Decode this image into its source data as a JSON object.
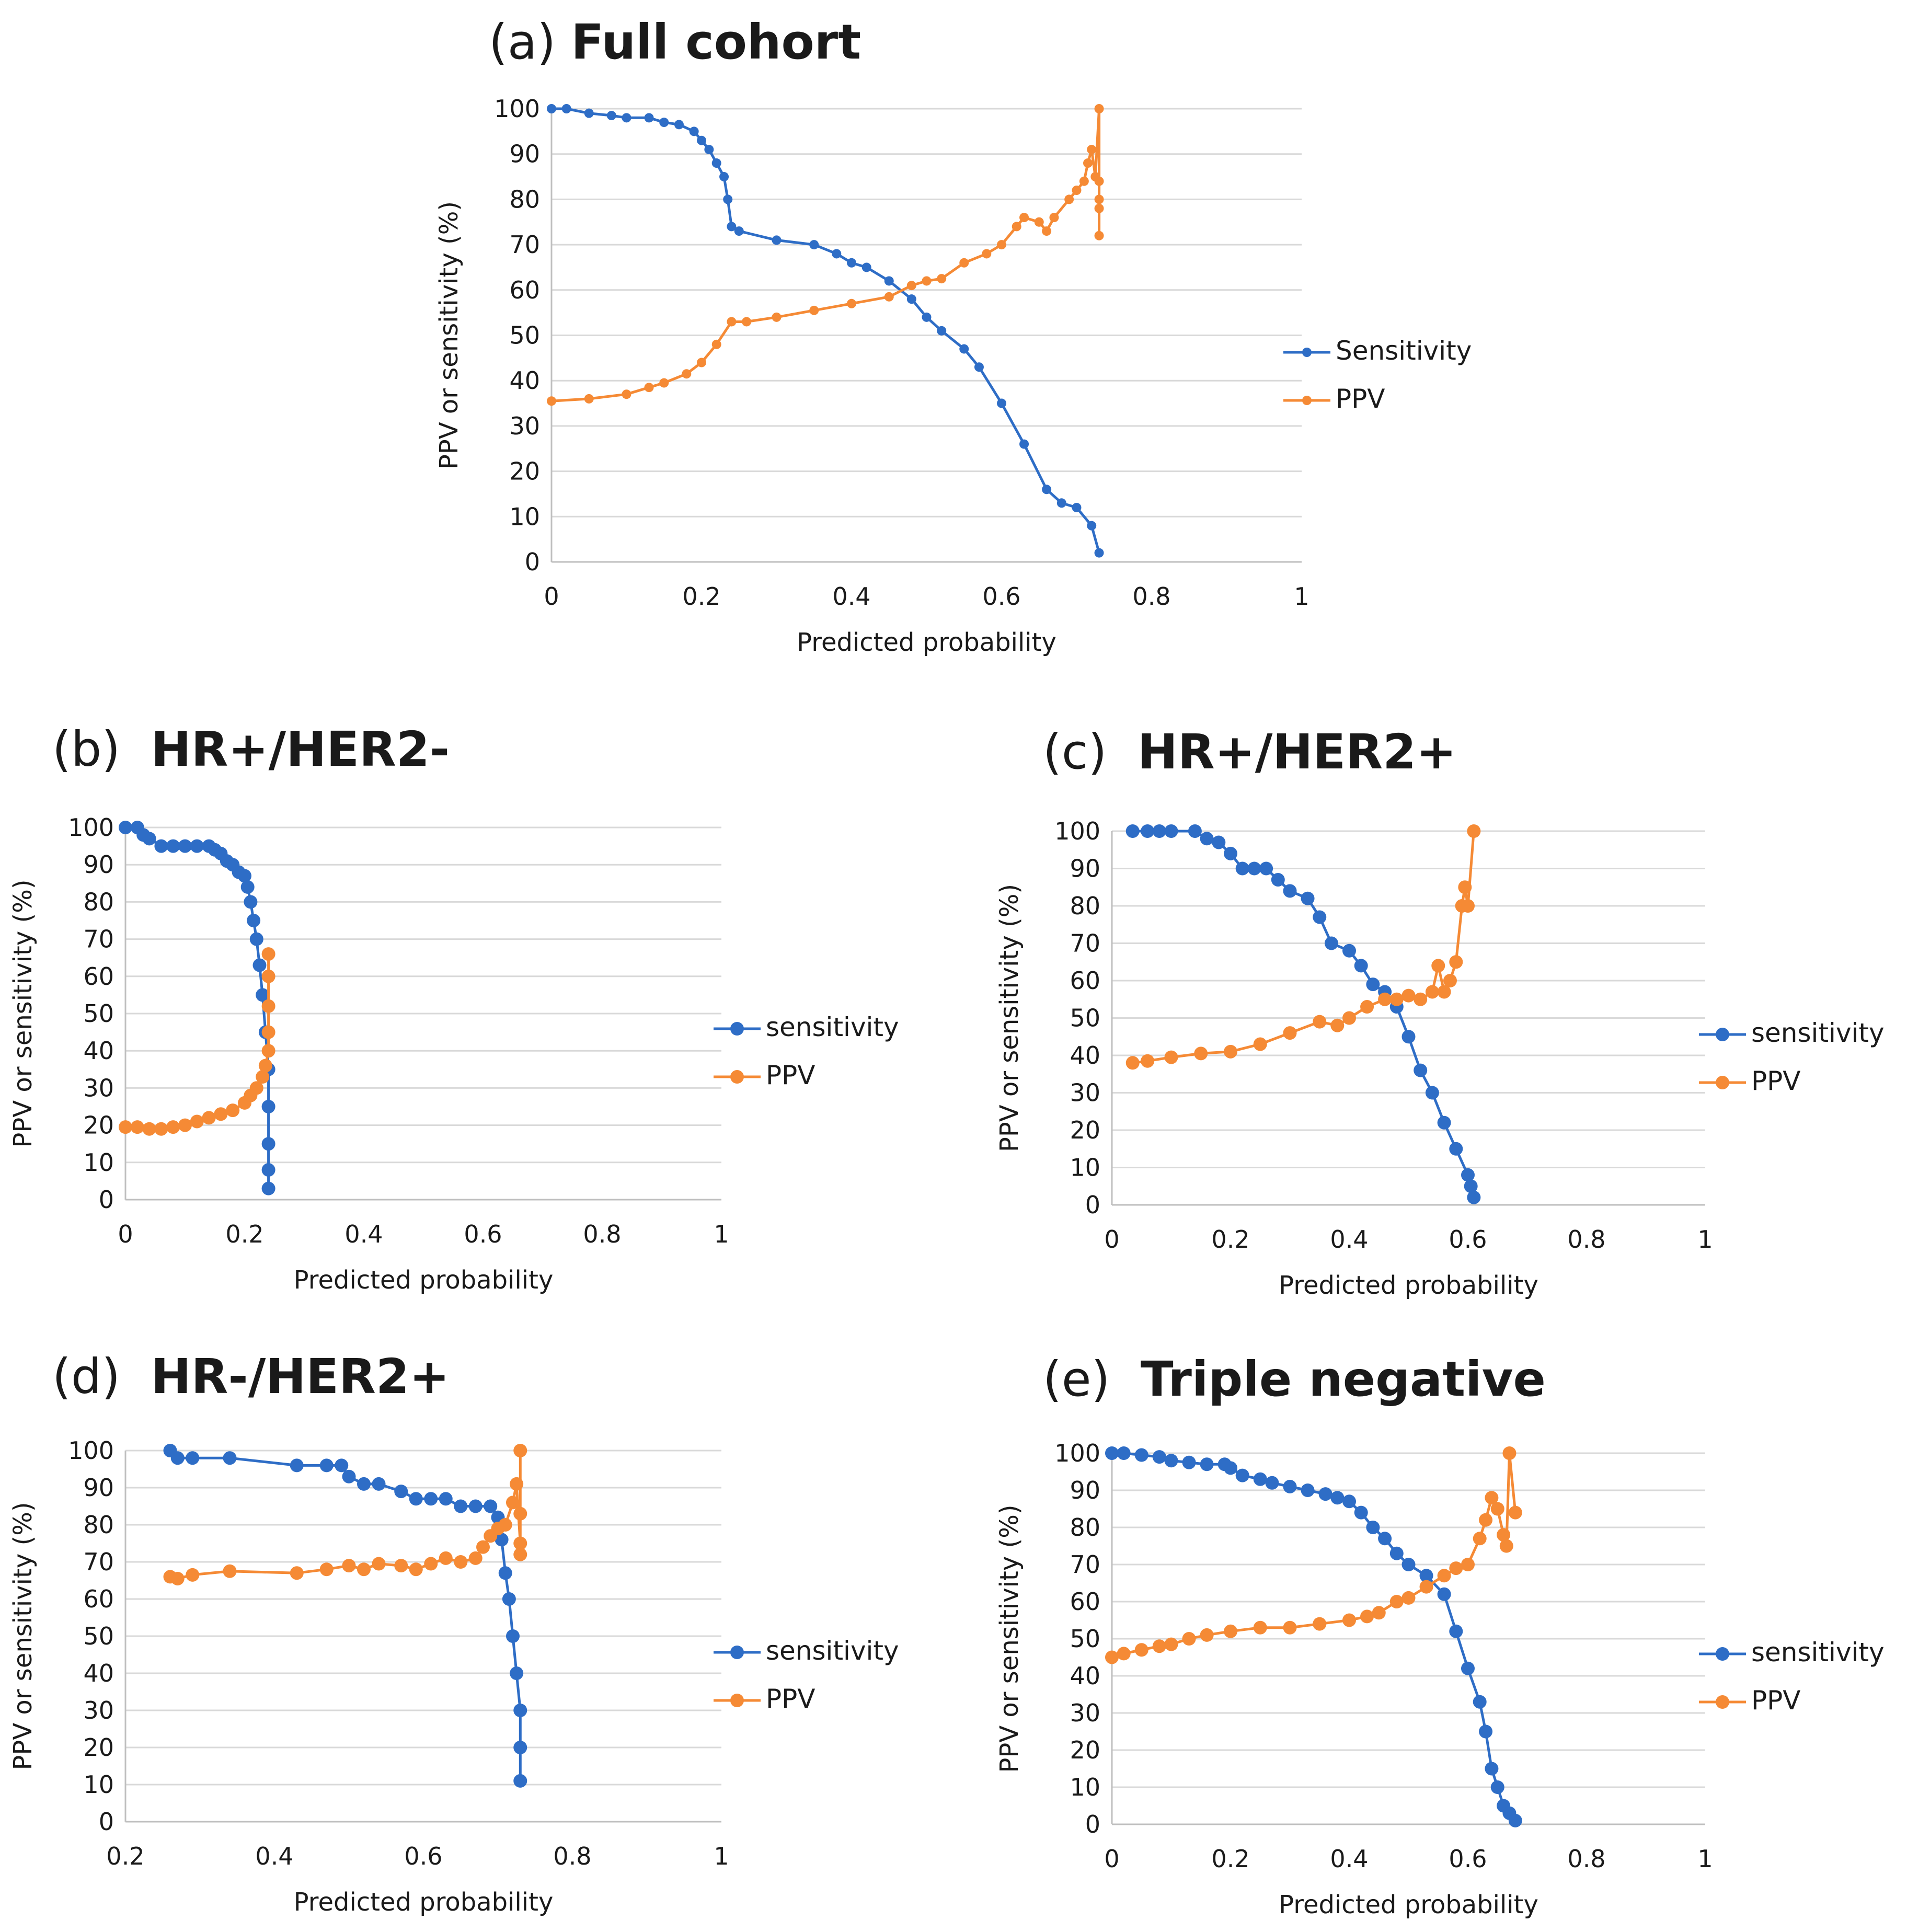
{
  "colors": {
    "sensitivity": "#2e6dc6",
    "ppv": "#f58a35"
  },
  "chart_data": [
    {
      "id": "a",
      "type": "line",
      "label_prefix": "(a) ",
      "title": "Full cohort",
      "xlabel": "Predicted probability",
      "ylabel": "PPV or sensitivity (%)",
      "xlim": [
        0,
        1
      ],
      "ylim": [
        0,
        100
      ],
      "xticks": [
        "0",
        "0.2",
        "0.4",
        "0.6",
        "0.8",
        "1"
      ],
      "yticks": [
        "0",
        "10",
        "20",
        "30",
        "40",
        "50",
        "60",
        "70",
        "80",
        "90",
        "100"
      ],
      "legend": [
        "Sensitivity",
        "PPV"
      ],
      "series": [
        {
          "name": "Sensitivity",
          "x": [
            0,
            0.02,
            0.05,
            0.08,
            0.1,
            0.13,
            0.15,
            0.17,
            0.19,
            0.2,
            0.21,
            0.22,
            0.23,
            0.235,
            0.24,
            0.25,
            0.3,
            0.35,
            0.38,
            0.4,
            0.42,
            0.45,
            0.48,
            0.5,
            0.52,
            0.55,
            0.57,
            0.6,
            0.63,
            0.66,
            0.68,
            0.7,
            0.72,
            0.73
          ],
          "y": [
            100,
            100,
            99,
            98.5,
            98,
            98,
            97,
            96.5,
            95,
            93,
            91,
            88,
            85,
            80,
            74,
            73,
            71,
            70,
            68,
            66,
            65,
            62,
            58,
            54,
            51,
            47,
            43,
            35,
            26,
            16,
            13,
            12,
            8,
            2
          ]
        },
        {
          "name": "PPV",
          "x": [
            0,
            0.05,
            0.1,
            0.13,
            0.15,
            0.18,
            0.2,
            0.22,
            0.24,
            0.26,
            0.3,
            0.35,
            0.4,
            0.45,
            0.48,
            0.5,
            0.52,
            0.55,
            0.58,
            0.6,
            0.62,
            0.63,
            0.65,
            0.66,
            0.67,
            0.69,
            0.7,
            0.71,
            0.715,
            0.72,
            0.725,
            0.73,
            0.73,
            0.73,
            0.73,
            0.73
          ],
          "y": [
            35.5,
            36,
            37,
            38.5,
            39.5,
            41.5,
            44,
            48,
            53,
            53,
            54,
            55.5,
            57,
            58.5,
            61,
            62,
            62.5,
            66,
            68,
            70,
            74,
            76,
            75,
            73,
            76,
            80,
            82,
            84,
            88,
            91,
            85,
            100,
            72,
            84,
            78,
            80
          ]
        }
      ]
    },
    {
      "id": "b",
      "type": "line",
      "label_prefix": "(b)  ",
      "title": "HR+/HER2-",
      "xlabel": "Predicted probability",
      "ylabel": "PPV or sensitivity (%)",
      "xlim": [
        0,
        1
      ],
      "ylim": [
        0,
        100
      ],
      "xticks": [
        "0",
        "0.2",
        "0.4",
        "0.6",
        "0.8",
        "1"
      ],
      "yticks": [
        "0",
        "10",
        "20",
        "30",
        "40",
        "50",
        "60",
        "70",
        "80",
        "90",
        "100"
      ],
      "legend": [
        "sensitivity",
        "PPV"
      ],
      "series": [
        {
          "name": "sensitivity",
          "x": [
            0,
            0.02,
            0.03,
            0.04,
            0.06,
            0.08,
            0.1,
            0.12,
            0.14,
            0.15,
            0.16,
            0.17,
            0.18,
            0.19,
            0.2,
            0.205,
            0.21,
            0.215,
            0.22,
            0.225,
            0.23,
            0.235,
            0.24,
            0.24,
            0.24,
            0.24,
            0.24
          ],
          "y": [
            100,
            100,
            98,
            97,
            95,
            95,
            95,
            95,
            95,
            94,
            93,
            91,
            90,
            88,
            87,
            84,
            80,
            75,
            70,
            63,
            55,
            45,
            35,
            25,
            15,
            8,
            3
          ]
        },
        {
          "name": "PPV",
          "x": [
            0,
            0.02,
            0.04,
            0.06,
            0.08,
            0.1,
            0.12,
            0.14,
            0.16,
            0.18,
            0.2,
            0.21,
            0.22,
            0.23,
            0.235,
            0.24,
            0.24,
            0.24,
            0.24,
            0.24
          ],
          "y": [
            19.5,
            19.5,
            19,
            19,
            19.5,
            20,
            21,
            22,
            23,
            24,
            26,
            28,
            30,
            33,
            36,
            40,
            45,
            52,
            60,
            66
          ]
        }
      ]
    },
    {
      "id": "c",
      "type": "line",
      "label_prefix": "(c)  ",
      "title": "HR+/HER2+",
      "xlabel": "Predicted probability",
      "ylabel": "PPV or sensitivity (%)",
      "xlim": [
        0,
        1
      ],
      "ylim": [
        0,
        100
      ],
      "xticks": [
        "0",
        "0.2",
        "0.4",
        "0.6",
        "0.8",
        "1"
      ],
      "yticks": [
        "0",
        "10",
        "20",
        "30",
        "40",
        "50",
        "60",
        "70",
        "80",
        "90",
        "100"
      ],
      "legend": [
        "sensitivity",
        "PPV"
      ],
      "series": [
        {
          "name": "sensitivity",
          "x": [
            0.035,
            0.06,
            0.08,
            0.1,
            0.14,
            0.16,
            0.18,
            0.2,
            0.22,
            0.24,
            0.26,
            0.28,
            0.3,
            0.33,
            0.35,
            0.37,
            0.4,
            0.42,
            0.44,
            0.46,
            0.48,
            0.5,
            0.52,
            0.54,
            0.56,
            0.58,
            0.6,
            0.605,
            0.61
          ],
          "y": [
            100,
            100,
            100,
            100,
            100,
            98,
            97,
            94,
            90,
            90,
            90,
            87,
            84,
            82,
            77,
            70,
            68,
            64,
            59,
            57,
            53,
            45,
            36,
            30,
            22,
            15,
            8,
            5,
            2
          ]
        },
        {
          "name": "PPV",
          "x": [
            0.035,
            0.06,
            0.1,
            0.15,
            0.2,
            0.25,
            0.3,
            0.35,
            0.38,
            0.4,
            0.43,
            0.46,
            0.48,
            0.5,
            0.52,
            0.54,
            0.55,
            0.56,
            0.57,
            0.58,
            0.59,
            0.595,
            0.6,
            0.61
          ],
          "y": [
            38,
            38.5,
            39.5,
            40.5,
            41,
            43,
            46,
            49,
            48,
            50,
            53,
            55,
            55,
            56,
            55,
            57,
            64,
            57,
            60,
            65,
            80,
            85,
            80,
            100
          ]
        }
      ]
    },
    {
      "id": "d",
      "type": "line",
      "label_prefix": "(d)  ",
      "title": "HR-/HER2+",
      "xlabel": "Predicted probability",
      "ylabel": "PPV or sensitivity (%)",
      "xlim": [
        0.2,
        1
      ],
      "ylim": [
        0,
        100
      ],
      "xticks": [
        "0.2",
        "0.4",
        "0.6",
        "0.8",
        "1"
      ],
      "yticks": [
        "0",
        "10",
        "20",
        "30",
        "40",
        "50",
        "60",
        "70",
        "80",
        "90",
        "100"
      ],
      "legend": [
        "sensitivity",
        "PPV"
      ],
      "series": [
        {
          "name": "sensitivity",
          "x": [
            0.26,
            0.27,
            0.29,
            0.34,
            0.43,
            0.47,
            0.49,
            0.5,
            0.52,
            0.54,
            0.57,
            0.59,
            0.61,
            0.63,
            0.65,
            0.67,
            0.69,
            0.7,
            0.705,
            0.71,
            0.715,
            0.72,
            0.725,
            0.73,
            0.73,
            0.73
          ],
          "y": [
            100,
            98,
            98,
            98,
            96,
            96,
            96,
            93,
            91,
            91,
            89,
            87,
            87,
            87,
            85,
            85,
            85,
            82,
            76,
            67,
            60,
            50,
            40,
            30,
            20,
            11
          ]
        },
        {
          "name": "PPV",
          "x": [
            0.26,
            0.27,
            0.29,
            0.34,
            0.43,
            0.47,
            0.5,
            0.52,
            0.54,
            0.57,
            0.59,
            0.61,
            0.63,
            0.65,
            0.67,
            0.68,
            0.69,
            0.7,
            0.71,
            0.72,
            0.725,
            0.73,
            0.73,
            0.73,
            0.73
          ],
          "y": [
            66,
            65.5,
            66.5,
            67.5,
            67,
            68,
            69,
            68,
            69.5,
            69,
            68,
            69.5,
            71,
            70,
            71,
            74,
            77,
            79,
            80,
            86,
            91,
            75,
            100,
            72,
            83
          ]
        }
      ]
    },
    {
      "id": "e",
      "type": "line",
      "label_prefix": "(e)  ",
      "title": "Triple negative",
      "xlabel": "Predicted probability",
      "ylabel": "PPV or sensitivity (%)",
      "xlim": [
        0,
        1
      ],
      "ylim": [
        0,
        100
      ],
      "xticks": [
        "0",
        "0.2",
        "0.4",
        "0.6",
        "0.8",
        "1"
      ],
      "yticks": [
        "0",
        "10",
        "20",
        "30",
        "40",
        "50",
        "60",
        "70",
        "80",
        "90",
        "100"
      ],
      "legend": [
        "sensitivity",
        "PPV"
      ],
      "series": [
        {
          "name": "sensitivity",
          "x": [
            0,
            0.02,
            0.05,
            0.08,
            0.1,
            0.13,
            0.16,
            0.19,
            0.2,
            0.22,
            0.25,
            0.27,
            0.3,
            0.33,
            0.36,
            0.38,
            0.4,
            0.42,
            0.44,
            0.46,
            0.48,
            0.5,
            0.53,
            0.56,
            0.58,
            0.6,
            0.62,
            0.63,
            0.64,
            0.65,
            0.66,
            0.67,
            0.68
          ],
          "y": [
            100,
            100,
            99.5,
            99,
            98,
            97.5,
            97,
            97,
            96,
            94,
            93,
            92,
            91,
            90,
            89,
            88,
            87,
            84,
            80,
            77,
            73,
            70,
            67,
            62,
            52,
            42,
            33,
            25,
            15,
            10,
            5,
            3,
            1
          ]
        },
        {
          "name": "PPV",
          "x": [
            0,
            0.02,
            0.05,
            0.08,
            0.1,
            0.13,
            0.16,
            0.2,
            0.25,
            0.3,
            0.35,
            0.4,
            0.43,
            0.45,
            0.48,
            0.5,
            0.53,
            0.56,
            0.58,
            0.6,
            0.62,
            0.63,
            0.64,
            0.65,
            0.66,
            0.665,
            0.67,
            0.68
          ],
          "y": [
            45,
            46,
            47,
            48,
            48.5,
            50,
            51,
            52,
            53,
            53,
            54,
            55,
            56,
            57,
            60,
            61,
            64,
            67,
            69,
            70,
            77,
            82,
            88,
            85,
            78,
            75,
            100,
            84
          ]
        }
      ]
    }
  ]
}
